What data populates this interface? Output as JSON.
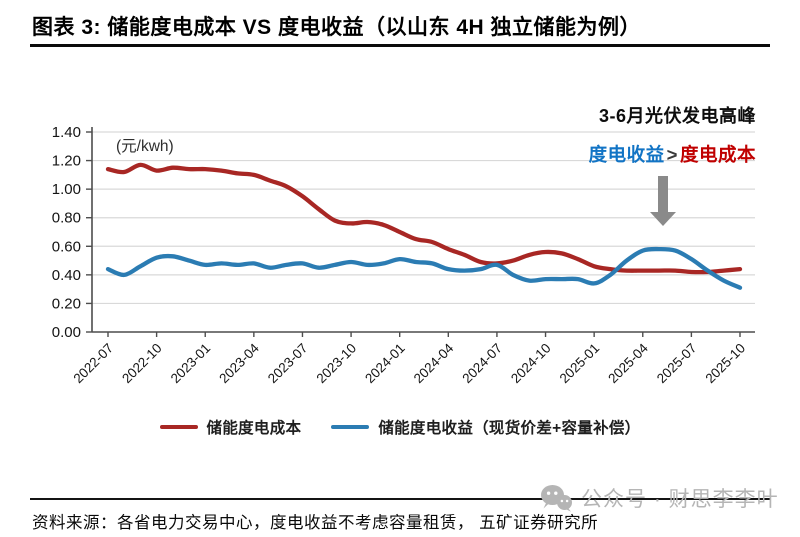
{
  "header": {
    "title": "图表 3: 储能度电成本 VS 度电收益（以山东 4H 独立储能为例）"
  },
  "annotation": {
    "line1": "3-6月光伏发电高峰",
    "revenue_label": "度电收益",
    "comparator": ">",
    "cost_label": "度电成本"
  },
  "watermark": {
    "text": "公众号 · 财思李李叶"
  },
  "footer": {
    "source": "资料来源：各省电力交易中心，度电收益不考虑容量租赁， 五矿证券研究所"
  },
  "colors": {
    "cost_line": "#a82724",
    "revenue_line": "#2b7cb3",
    "annotation_blue": "#1274c5",
    "annotation_red": "#c00000",
    "arrow_gray": "#8a8a8a",
    "gridline": "#d9d9d9",
    "axis": "#4d4d4d",
    "tick_text": "#141414",
    "watermark_gray": "#b5b5b5"
  },
  "chart_data": {
    "type": "line",
    "title": "储能度电成本 VS 度电收益（以山东4H独立储能为例）",
    "unit_label": "(元/kwh)",
    "xlabel": "",
    "ylabel": "元/kwh",
    "ylim": [
      0,
      1.4
    ],
    "ytick_step": 0.2,
    "ytick_labels": [
      "0.00",
      "0.20",
      "0.40",
      "0.60",
      "0.80",
      "1.00",
      "1.20",
      "1.40"
    ],
    "grid": true,
    "legend_position": "bottom",
    "x": [
      "2022-07",
      "2022-08",
      "2022-09",
      "2022-10",
      "2022-11",
      "2022-12",
      "2023-01",
      "2023-02",
      "2023-03",
      "2023-04",
      "2023-05",
      "2023-06",
      "2023-07",
      "2023-08",
      "2023-09",
      "2023-10",
      "2023-11",
      "2023-12",
      "2024-01",
      "2024-02",
      "2024-03",
      "2024-04",
      "2024-05",
      "2024-06",
      "2024-07",
      "2024-08",
      "2024-09",
      "2024-10",
      "2024-11",
      "2024-12",
      "2025-01",
      "2025-02",
      "2025-03",
      "2025-04",
      "2025-05",
      "2025-06",
      "2025-07",
      "2025-08",
      "2025-09",
      "2025-10"
    ],
    "xtick_labels": [
      "2022-07",
      "2022-10",
      "2023-01",
      "2023-04",
      "2023-07",
      "2023-10",
      "2024-01",
      "2024-04",
      "2024-07",
      "2024-10",
      "2025-01",
      "2025-04",
      "2025-07",
      "2025-10"
    ],
    "series": [
      {
        "name": "储能度电成本",
        "color": "#a82724",
        "values": [
          1.14,
          1.12,
          1.17,
          1.13,
          1.15,
          1.14,
          1.14,
          1.13,
          1.11,
          1.1,
          1.06,
          1.02,
          0.95,
          0.86,
          0.78,
          0.76,
          0.77,
          0.75,
          0.7,
          0.65,
          0.63,
          0.58,
          0.54,
          0.49,
          0.48,
          0.5,
          0.54,
          0.56,
          0.55,
          0.51,
          0.46,
          0.44,
          0.43,
          0.43,
          0.43,
          0.43,
          0.42,
          0.42,
          0.43,
          0.44
        ]
      },
      {
        "name": "储能度电收益（现货价差+容量补偿）",
        "color": "#2b7cb3",
        "values": [
          0.44,
          0.4,
          0.46,
          0.52,
          0.53,
          0.5,
          0.47,
          0.48,
          0.47,
          0.48,
          0.45,
          0.47,
          0.48,
          0.45,
          0.47,
          0.49,
          0.47,
          0.48,
          0.51,
          0.49,
          0.48,
          0.44,
          0.43,
          0.44,
          0.47,
          0.4,
          0.36,
          0.37,
          0.37,
          0.37,
          0.34,
          0.4,
          0.5,
          0.57,
          0.58,
          0.57,
          0.51,
          0.43,
          0.36,
          0.31
        ]
      }
    ]
  }
}
